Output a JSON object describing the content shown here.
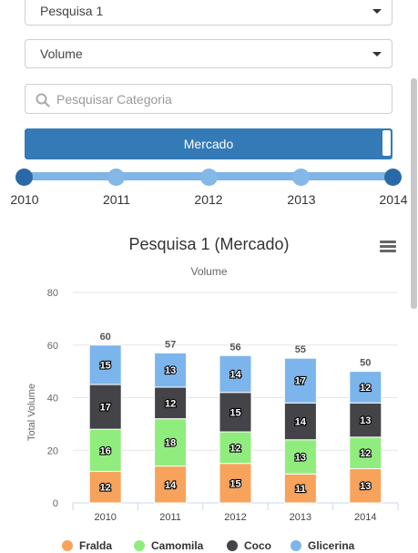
{
  "filters": {
    "survey": "Pesquisa 1",
    "metric": "Volume",
    "search_placeholder": "Pesquisar Categoria",
    "scope_button": "Mercado"
  },
  "year_slider": {
    "ticks": [
      "2010",
      "2011",
      "2012",
      "2013",
      "2014"
    ],
    "range_start": "2010",
    "range_end": "2014"
  },
  "chart_header": {
    "title": "Pesquisa 1 (Mercado)",
    "subtitle": "Volume",
    "menu_icon": "hamburger-icon"
  },
  "chart_data": {
    "type": "bar",
    "stacked": true,
    "title": "Pesquisa 1 (Mercado)",
    "subtitle": "Volume",
    "ylabel": "Total Volume",
    "xlabel": "",
    "ylim": [
      0,
      80
    ],
    "yticks": [
      0,
      20,
      40,
      60,
      80
    ],
    "grid": true,
    "legend_position": "bottom",
    "categories": [
      "2010",
      "2011",
      "2012",
      "2013",
      "2014"
    ],
    "series": [
      {
        "name": "Fralda",
        "color": "#f7a35c",
        "values": [
          12,
          14,
          15,
          11,
          13
        ]
      },
      {
        "name": "Camomila",
        "color": "#90ed7d",
        "values": [
          16,
          18,
          12,
          13,
          12
        ]
      },
      {
        "name": "Coco",
        "color": "#434348",
        "values": [
          17,
          12,
          15,
          14,
          13
        ]
      },
      {
        "name": "Glicerina",
        "color": "#7cb5ec",
        "values": [
          15,
          13,
          14,
          17,
          12
        ]
      }
    ],
    "totals": [
      60,
      57,
      56,
      55,
      50
    ]
  }
}
